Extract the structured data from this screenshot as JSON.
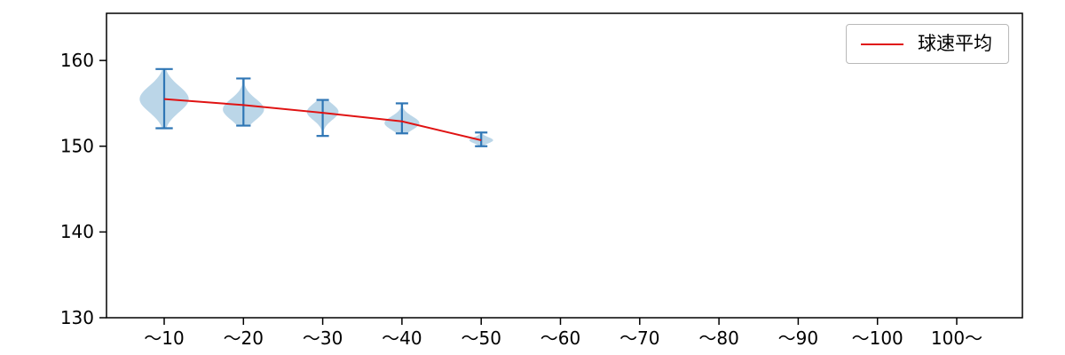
{
  "figure": {
    "background": "#ffffff"
  },
  "chart_data": {
    "type": "violin",
    "title": "",
    "xlabel": "",
    "ylabel": "",
    "categories": [
      "～10",
      "～20",
      "～30",
      "～40",
      "～50",
      "～60",
      "～70",
      "～80",
      "～90",
      "～100",
      "100～"
    ],
    "ylim": [
      130,
      165.5
    ],
    "yticks": [
      130,
      140,
      150,
      160
    ],
    "grid": false,
    "legend_label": "球速平均",
    "legend_position": "upper right",
    "colors": {
      "violin_fill": "#1f77b4",
      "violin_fill_opacity": 0.3,
      "whisker": "#2f76b5",
      "mean_line": "#e01313",
      "axis": "#000000"
    },
    "violins": [
      {
        "category": "～10",
        "min": 152.1,
        "max": 159.0,
        "mean": 155.5,
        "peak": 155.5,
        "width": 0.62
      },
      {
        "category": "～20",
        "min": 152.4,
        "max": 157.9,
        "mean": 154.8,
        "peak": 154.3,
        "width": 0.52
      },
      {
        "category": "～30",
        "min": 151.2,
        "max": 155.4,
        "mean": 153.9,
        "peak": 154.0,
        "width": 0.4
      },
      {
        "category": "～40",
        "min": 151.5,
        "max": 155.0,
        "mean": 152.9,
        "peak": 152.7,
        "width": 0.44
      },
      {
        "category": "～50",
        "min": 150.0,
        "max": 151.6,
        "mean": 150.7,
        "peak": 150.7,
        "width": 0.3
      }
    ],
    "mean_series": {
      "name": "球速平均",
      "x": [
        "～10",
        "～20",
        "～30",
        "～40",
        "～50"
      ],
      "values": [
        155.5,
        154.8,
        153.9,
        152.9,
        150.7
      ]
    }
  }
}
